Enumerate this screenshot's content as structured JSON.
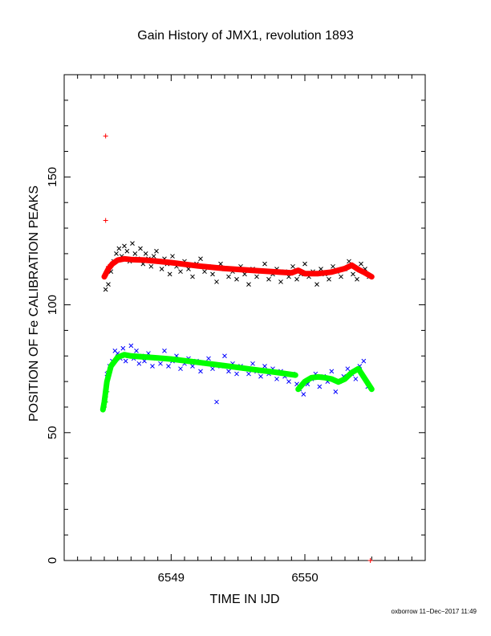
{
  "chart_data": {
    "type": "scatter",
    "title": "Gain History of JMX1, revolution 1893",
    "xlabel": "TIME IN IJD",
    "ylabel": "POSITION OF Fe CALIBRATION PEAKS",
    "xlim": [
      6548.2,
      6550.9
    ],
    "ylim": [
      0,
      190
    ],
    "x_ticks": [
      6549,
      6550
    ],
    "y_ticks": [
      0,
      50,
      100,
      150
    ],
    "grid": false,
    "series": [
      {
        "color": "#000000",
        "marker": "x",
        "x": [
          6548.51,
          6548.53,
          6548.55,
          6548.57,
          6548.59,
          6548.61,
          6548.63,
          6548.65,
          6548.67,
          6548.69,
          6548.71,
          6548.73,
          6548.75,
          6548.77,
          6548.79,
          6548.81,
          6548.83,
          6548.85,
          6548.87,
          6548.89,
          6548.91,
          6548.93,
          6548.95,
          6548.97,
          6548.99,
          6549.01,
          6549.04,
          6549.07,
          6549.1,
          6549.13,
          6549.16,
          6549.19,
          6549.22,
          6549.25,
          6549.28,
          6549.31,
          6549.34,
          6549.37,
          6549.4,
          6549.43,
          6549.46,
          6549.49,
          6549.52,
          6549.55,
          6549.58,
          6549.61,
          6549.64,
          6549.67,
          6549.7,
          6549.73,
          6549.76,
          6549.79,
          6549.82,
          6549.85,
          6549.88,
          6549.91,
          6549.94,
          6549.97,
          6550.0,
          6550.03,
          6550.06,
          6550.09,
          6550.12,
          6550.15,
          6550.18,
          6550.21,
          6550.24,
          6550.27,
          6550.3,
          6550.33,
          6550.36,
          6550.39,
          6550.42,
          6550.45,
          6550.48
        ],
        "y": [
          106,
          108,
          113,
          117,
          120,
          122,
          119,
          123,
          121,
          117,
          124,
          120,
          118,
          122,
          116,
          120,
          118,
          115,
          119,
          121,
          117,
          114,
          118,
          116,
          112,
          119,
          115,
          113,
          117,
          114,
          111,
          116,
          118,
          113,
          115,
          112,
          109,
          116,
          114,
          111,
          113,
          110,
          115,
          112,
          108,
          114,
          111,
          113,
          116,
          110,
          112,
          114,
          109,
          113,
          111,
          115,
          110,
          112,
          116,
          111,
          113,
          108,
          114,
          112,
          110,
          115,
          113,
          111,
          114,
          117,
          112,
          110,
          116,
          114,
          111
        ]
      },
      {
        "color": "#ff0000",
        "marker": "+",
        "x": [
          6548.51,
          6548.51,
          6548.51,
          6548.52,
          6548.53,
          6550.49
        ],
        "y": [
          166,
          133,
          112,
          113,
          115,
          0
        ]
      },
      {
        "color": "#ff0000",
        "marker": "line",
        "x": [
          6548.5,
          6548.53,
          6548.56,
          6548.6,
          6548.65,
          6548.7,
          6548.8,
          6548.9,
          6549.0,
          6549.2,
          6549.4,
          6549.6,
          6549.8,
          6549.9,
          6549.95,
          6550.0,
          6550.1,
          6550.2,
          6550.3,
          6550.35,
          6550.4,
          6550.45,
          6550.5
        ],
        "y": [
          111,
          114,
          116,
          117.5,
          118,
          117.7,
          117.5,
          117,
          116.5,
          115.2,
          114.2,
          113.5,
          112.8,
          112.5,
          113.5,
          112.2,
          112.2,
          112.8,
          114.2,
          115.5,
          113.8,
          112.5,
          111
        ]
      },
      {
        "color": "#0000ff",
        "marker": "x",
        "x": [
          6548.52,
          6548.54,
          6548.56,
          6548.58,
          6548.6,
          6548.62,
          6548.64,
          6548.66,
          6548.68,
          6548.7,
          6548.72,
          6548.74,
          6548.76,
          6548.78,
          6548.8,
          6548.83,
          6548.86,
          6548.89,
          6548.92,
          6548.95,
          6548.98,
          6549.01,
          6549.04,
          6549.07,
          6549.1,
          6549.13,
          6549.16,
          6549.19,
          6549.22,
          6549.25,
          6549.28,
          6549.31,
          6549.34,
          6549.37,
          6549.4,
          6549.43,
          6549.46,
          6549.49,
          6549.52,
          6549.55,
          6549.58,
          6549.61,
          6549.64,
          6549.67,
          6549.7,
          6549.73,
          6549.76,
          6549.79,
          6549.82,
          6549.85,
          6549.88,
          6549.91,
          6549.94,
          6549.96,
          6549.99,
          6550.02,
          6550.05,
          6550.08,
          6550.11,
          6550.14,
          6550.17,
          6550.2,
          6550.23,
          6550.26,
          6550.29,
          6550.32,
          6550.35,
          6550.38,
          6550.41,
          6550.44,
          6550.47
        ],
        "y": [
          73,
          76,
          78,
          82,
          81,
          79,
          83,
          78,
          80,
          84,
          79,
          82,
          77,
          80,
          78,
          81,
          76,
          79,
          77,
          82,
          76,
          78,
          80,
          75,
          77,
          79,
          76,
          78,
          74,
          77,
          79,
          75,
          62,
          76,
          80,
          74,
          77,
          73,
          76,
          75,
          73,
          77,
          74,
          72,
          76,
          73,
          75,
          71,
          74,
          72,
          70,
          73,
          69,
          67,
          65,
          69,
          71,
          73,
          68,
          72,
          70,
          74,
          66,
          70,
          72,
          75,
          73,
          71,
          76,
          78,
          68
        ]
      },
      {
        "color": "#00bb00",
        "marker": "+",
        "x": [
          6548.49,
          6548.5,
          6548.5,
          6548.51,
          6548.51,
          6548.52,
          6548.52,
          6548.53,
          6548.53
        ],
        "y": [
          59,
          60,
          61,
          62,
          64,
          66,
          70,
          72,
          74
        ]
      },
      {
        "color": "#00ff00",
        "marker": "line",
        "x": [
          6548.49,
          6548.5,
          6548.52,
          6548.55,
          6548.6,
          6548.65,
          6548.7,
          6548.8,
          6548.9,
          6549.0,
          6549.2,
          6549.4,
          6549.6,
          6549.8,
          6549.93
        ],
        "y": [
          59,
          62,
          70,
          76,
          79.5,
          80.5,
          80,
          79.6,
          79.2,
          78.8,
          77.5,
          76.2,
          74.8,
          73.5,
          72.5
        ]
      },
      {
        "color": "#00ff00",
        "marker": "line",
        "x": [
          6549.95,
          6550.0,
          6550.05,
          6550.1,
          6550.15,
          6550.2,
          6550.25,
          6550.3,
          6550.35,
          6550.4,
          6550.45,
          6550.5
        ],
        "y": [
          67,
          70,
          71.5,
          71.8,
          71.5,
          71,
          69.8,
          71,
          73.5,
          75,
          71,
          67
        ]
      }
    ]
  },
  "footer": "oxborrow 11−Dec−2017 11:49"
}
